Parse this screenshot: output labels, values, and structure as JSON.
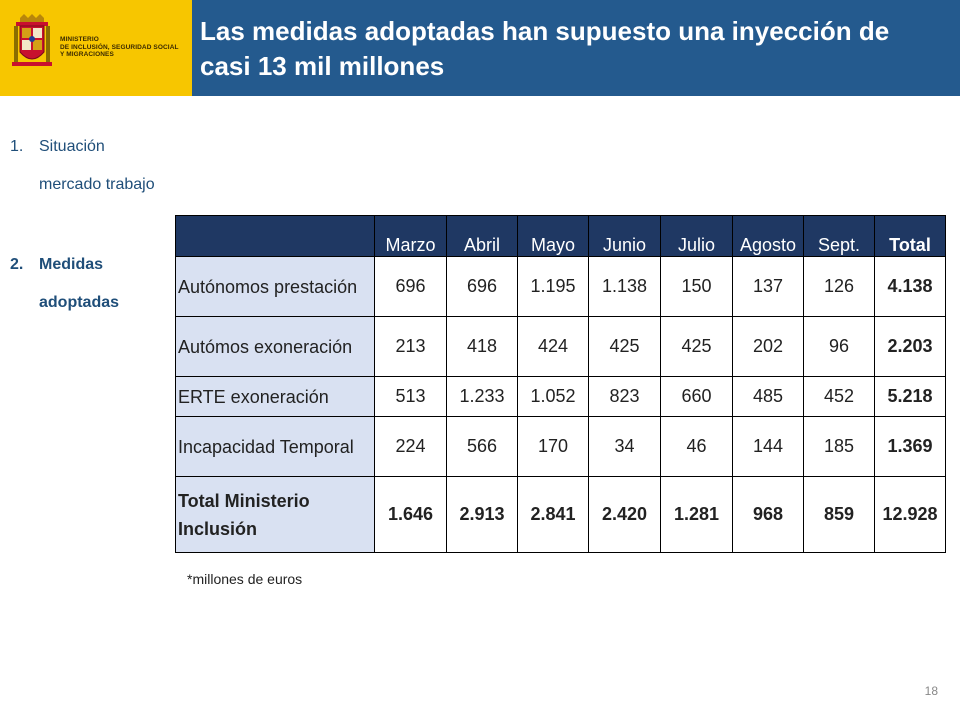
{
  "header": {
    "ministry_lines": [
      "MINISTERIO",
      "DE INCLUSIÓN, SEGURIDAD SOCIAL",
      "Y MIGRACIONES"
    ],
    "title": "Las medidas adoptadas han supuesto una inyección de casi 13 mil millones"
  },
  "nav": {
    "items": [
      {
        "num": "1.",
        "line1": "Situación",
        "line2": "mercado  trabajo"
      },
      {
        "num": "2.",
        "line1": "Medidas",
        "line2": "adoptadas"
      }
    ]
  },
  "table": {
    "columns": [
      "",
      "Marzo",
      "Abril",
      "Mayo",
      "Junio",
      "Julio",
      "Agosto",
      "Sept.",
      "Total"
    ],
    "rows": [
      {
        "label": "Autónomos prestación",
        "values": [
          "696",
          "696",
          "1.195",
          "1.138",
          "150",
          "137",
          "126"
        ],
        "total": "4.138"
      },
      {
        "label": "Autómos exoneración",
        "values": [
          "213",
          "418",
          "424",
          "425",
          "425",
          "202",
          "96"
        ],
        "total": "2.203"
      },
      {
        "label": "ERTE exoneración",
        "values": [
          "513",
          "1.233",
          "1.052",
          "823",
          "660",
          "485",
          "452"
        ],
        "total": "5.218"
      },
      {
        "label": "Incapacidad Temporal",
        "values": [
          "224",
          "566",
          "170",
          "34",
          "46",
          "144",
          "185"
        ],
        "total": "1.369"
      },
      {
        "label": "Total Ministerio Inclusión",
        "values": [
          "1.646",
          "2.913",
          "2.841",
          "2.420",
          "1.281",
          "968",
          "859"
        ],
        "total": "12.928"
      }
    ]
  },
  "footnote": "*millones de euros",
  "page_number": "18",
  "colors": {
    "logo_bg": "#f7c600",
    "title_bg": "#245a8e",
    "table_header_bg": "#1f3863",
    "row_label_bg": "#d9e1f2",
    "nav_text": "#1f4e79"
  }
}
